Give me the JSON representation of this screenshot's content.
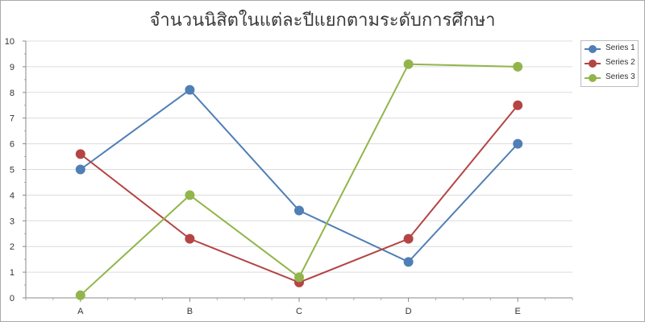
{
  "chart_data": {
    "type": "line",
    "title": "จำนวนนิสิตในแต่ละปีแยกตามระดับการศึกษา",
    "xlabel": "",
    "ylabel": "",
    "categories": [
      "A",
      "B",
      "C",
      "D",
      "E"
    ],
    "ylim": [
      0,
      10
    ],
    "yticks": [
      0,
      1,
      2,
      3,
      4,
      5,
      6,
      7,
      8,
      9,
      10
    ],
    "grid": true,
    "legend_position": "top-right",
    "series": [
      {
        "name": "Series 1",
        "color": "#4f7fb5",
        "values": [
          5.0,
          8.1,
          3.4,
          1.4,
          6.0
        ]
      },
      {
        "name": "Series 2",
        "color": "#b54444",
        "values": [
          5.6,
          2.3,
          0.6,
          2.3,
          7.5
        ]
      },
      {
        "name": "Series 3",
        "color": "#92b54b",
        "values": [
          0.1,
          4.0,
          0.8,
          9.1,
          9.0
        ]
      }
    ]
  }
}
